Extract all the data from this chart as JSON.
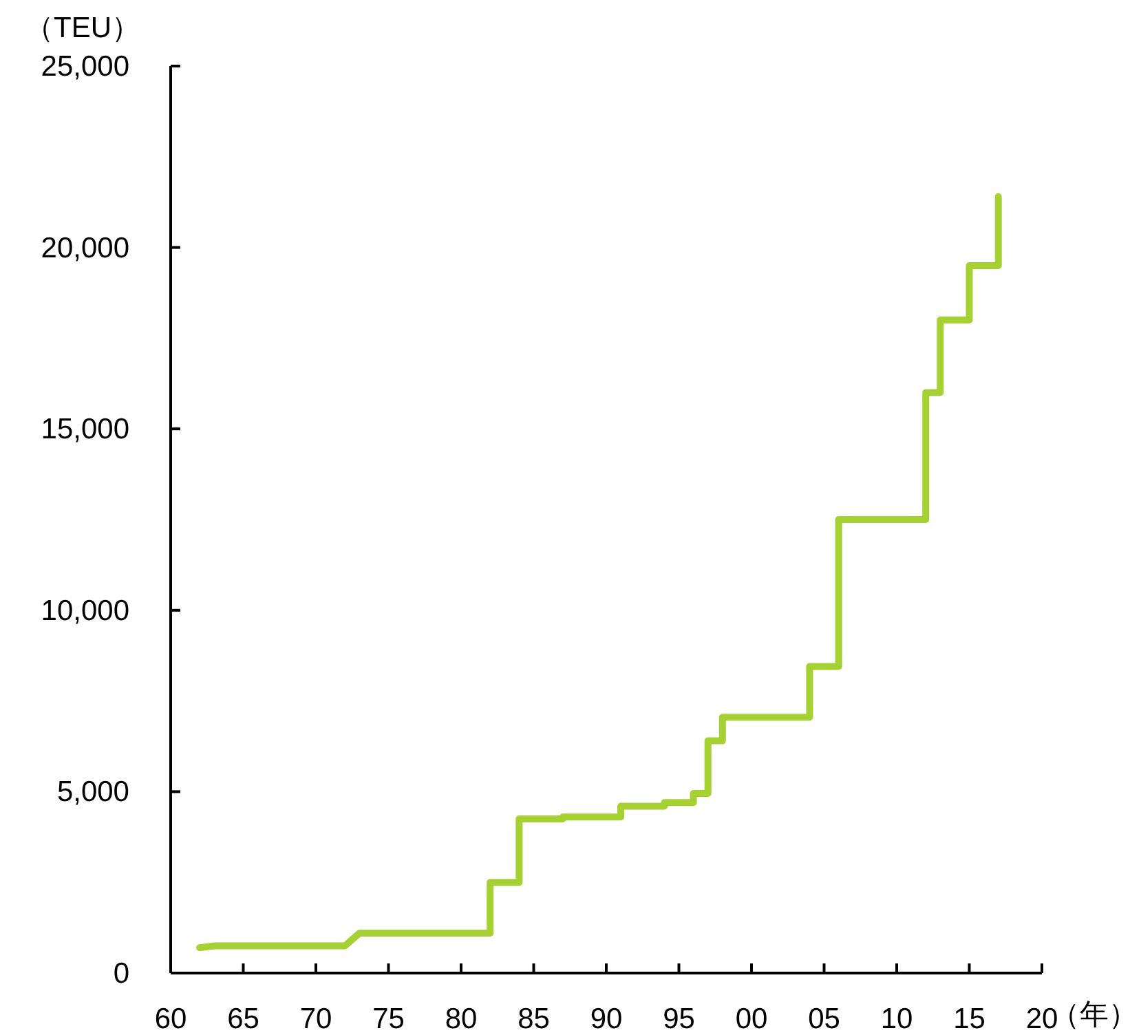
{
  "chart_data": {
    "type": "line",
    "ylabel": "（TEU）",
    "xlabel": "（年）",
    "x": [
      1962,
      1963,
      1972,
      1973,
      1982,
      1982,
      1984,
      1984,
      1987,
      1987,
      1991,
      1991,
      1994,
      1994,
      1996,
      1996,
      1997,
      1997,
      1998,
      1998,
      2004,
      2004,
      2006,
      2006,
      2012,
      2012,
      2013,
      2013,
      2015,
      2015,
      2017,
      2017
    ],
    "series": [
      {
        "color": "#a5d132",
        "values": [
          700,
          750,
          750,
          1100,
          1100,
          2500,
          2500,
          4250,
          4250,
          4300,
          4300,
          4600,
          4600,
          4700,
          4700,
          4950,
          4950,
          6400,
          6400,
          7050,
          7050,
          8450,
          8450,
          12500,
          12500,
          16000,
          16000,
          18000,
          18000,
          19500,
          19500,
          21400
        ]
      }
    ],
    "xlim": [
      1960,
      2020
    ],
    "xticks": [
      {
        "value": 1960,
        "label": "60"
      },
      {
        "value": 1965,
        "label": "65"
      },
      {
        "value": 1970,
        "label": "70"
      },
      {
        "value": 1975,
        "label": "75"
      },
      {
        "value": 1980,
        "label": "80"
      },
      {
        "value": 1985,
        "label": "85"
      },
      {
        "value": 1990,
        "label": "90"
      },
      {
        "value": 1995,
        "label": "95"
      },
      {
        "value": 2000,
        "label": "00"
      },
      {
        "value": 2005,
        "label": "05"
      },
      {
        "value": 2010,
        "label": "10"
      },
      {
        "value": 2015,
        "label": "15"
      },
      {
        "value": 2020,
        "label": "20"
      }
    ],
    "ylim": [
      0,
      25000
    ],
    "yticks": [
      0,
      {
        "value": 5000,
        "label": "5,000"
      },
      {
        "value": 10000,
        "label": "10,000"
      },
      {
        "value": 15000,
        "label": "15,000"
      },
      {
        "value": 20000,
        "label": "20,000"
      },
      {
        "value": 25000,
        "label": "25,000"
      }
    ],
    "grid": false,
    "marker": "none",
    "line_style": "solid"
  }
}
